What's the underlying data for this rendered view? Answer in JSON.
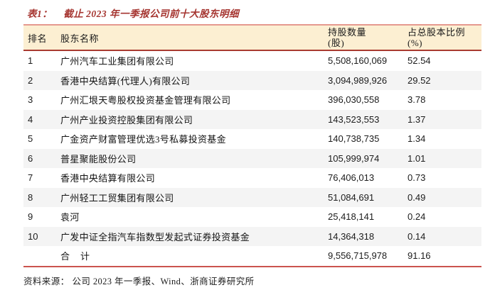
{
  "title": {
    "label": "表1：",
    "text": "截止 2023 年一季报公司前十大股东明细"
  },
  "table": {
    "columns": {
      "rank": "排名",
      "name": "股东名称",
      "shares_line1": "持股数量",
      "shares_line2": "(股)",
      "pct_line1": "占总股本比例",
      "pct_line2": "(%)"
    },
    "rows": [
      {
        "rank": "1",
        "name": "广州汽车工业集团有限公司",
        "shares": "5,508,160,069",
        "pct": "52.54"
      },
      {
        "rank": "2",
        "name": "香港中央结算(代理人)有限公司",
        "shares": "3,094,989,926",
        "pct": "29.52"
      },
      {
        "rank": "3",
        "name": "广州汇垠天粤股权投资基金管理有限公司",
        "shares": "396,030,558",
        "pct": "3.78"
      },
      {
        "rank": "4",
        "name": "广州产业投资控股集团有限公司",
        "shares": "143,523,553",
        "pct": "1.37"
      },
      {
        "rank": "5",
        "name": "广金资产财富管理优选3号私募投资基金",
        "shares": "140,738,735",
        "pct": "1.34"
      },
      {
        "rank": "6",
        "name": "普星聚能股份公司",
        "shares": "105,999,974",
        "pct": "1.01"
      },
      {
        "rank": "7",
        "name": "香港中央结算有限公司",
        "shares": "76,406,013",
        "pct": "0.73"
      },
      {
        "rank": "8",
        "name": "广州轻工工贸集团有限公司",
        "shares": "51,084,691",
        "pct": "0.49"
      },
      {
        "rank": "9",
        "name": "袁河",
        "shares": "25,418,141",
        "pct": "0.24"
      },
      {
        "rank": "10",
        "name": "广发中证全指汽车指数型发起式证券投资基金",
        "shares": "14,364,318",
        "pct": "0.14"
      }
    ],
    "total": {
      "name": "合　计",
      "shares": "9,556,715,978",
      "pct": "91.16"
    }
  },
  "footer": {
    "source_label": "资料来源：",
    "source_text": "公司 2023 年一季报、Wind、浙商证券研究所"
  },
  "colors": {
    "title_red": "#a5342f",
    "header_bg": "#fcefd2",
    "header_border_top": "#e5998f",
    "header_border_bottom": "#a93a30",
    "table_bottom_border": "#cb544e",
    "row_stripe": "#f4f4f4"
  }
}
